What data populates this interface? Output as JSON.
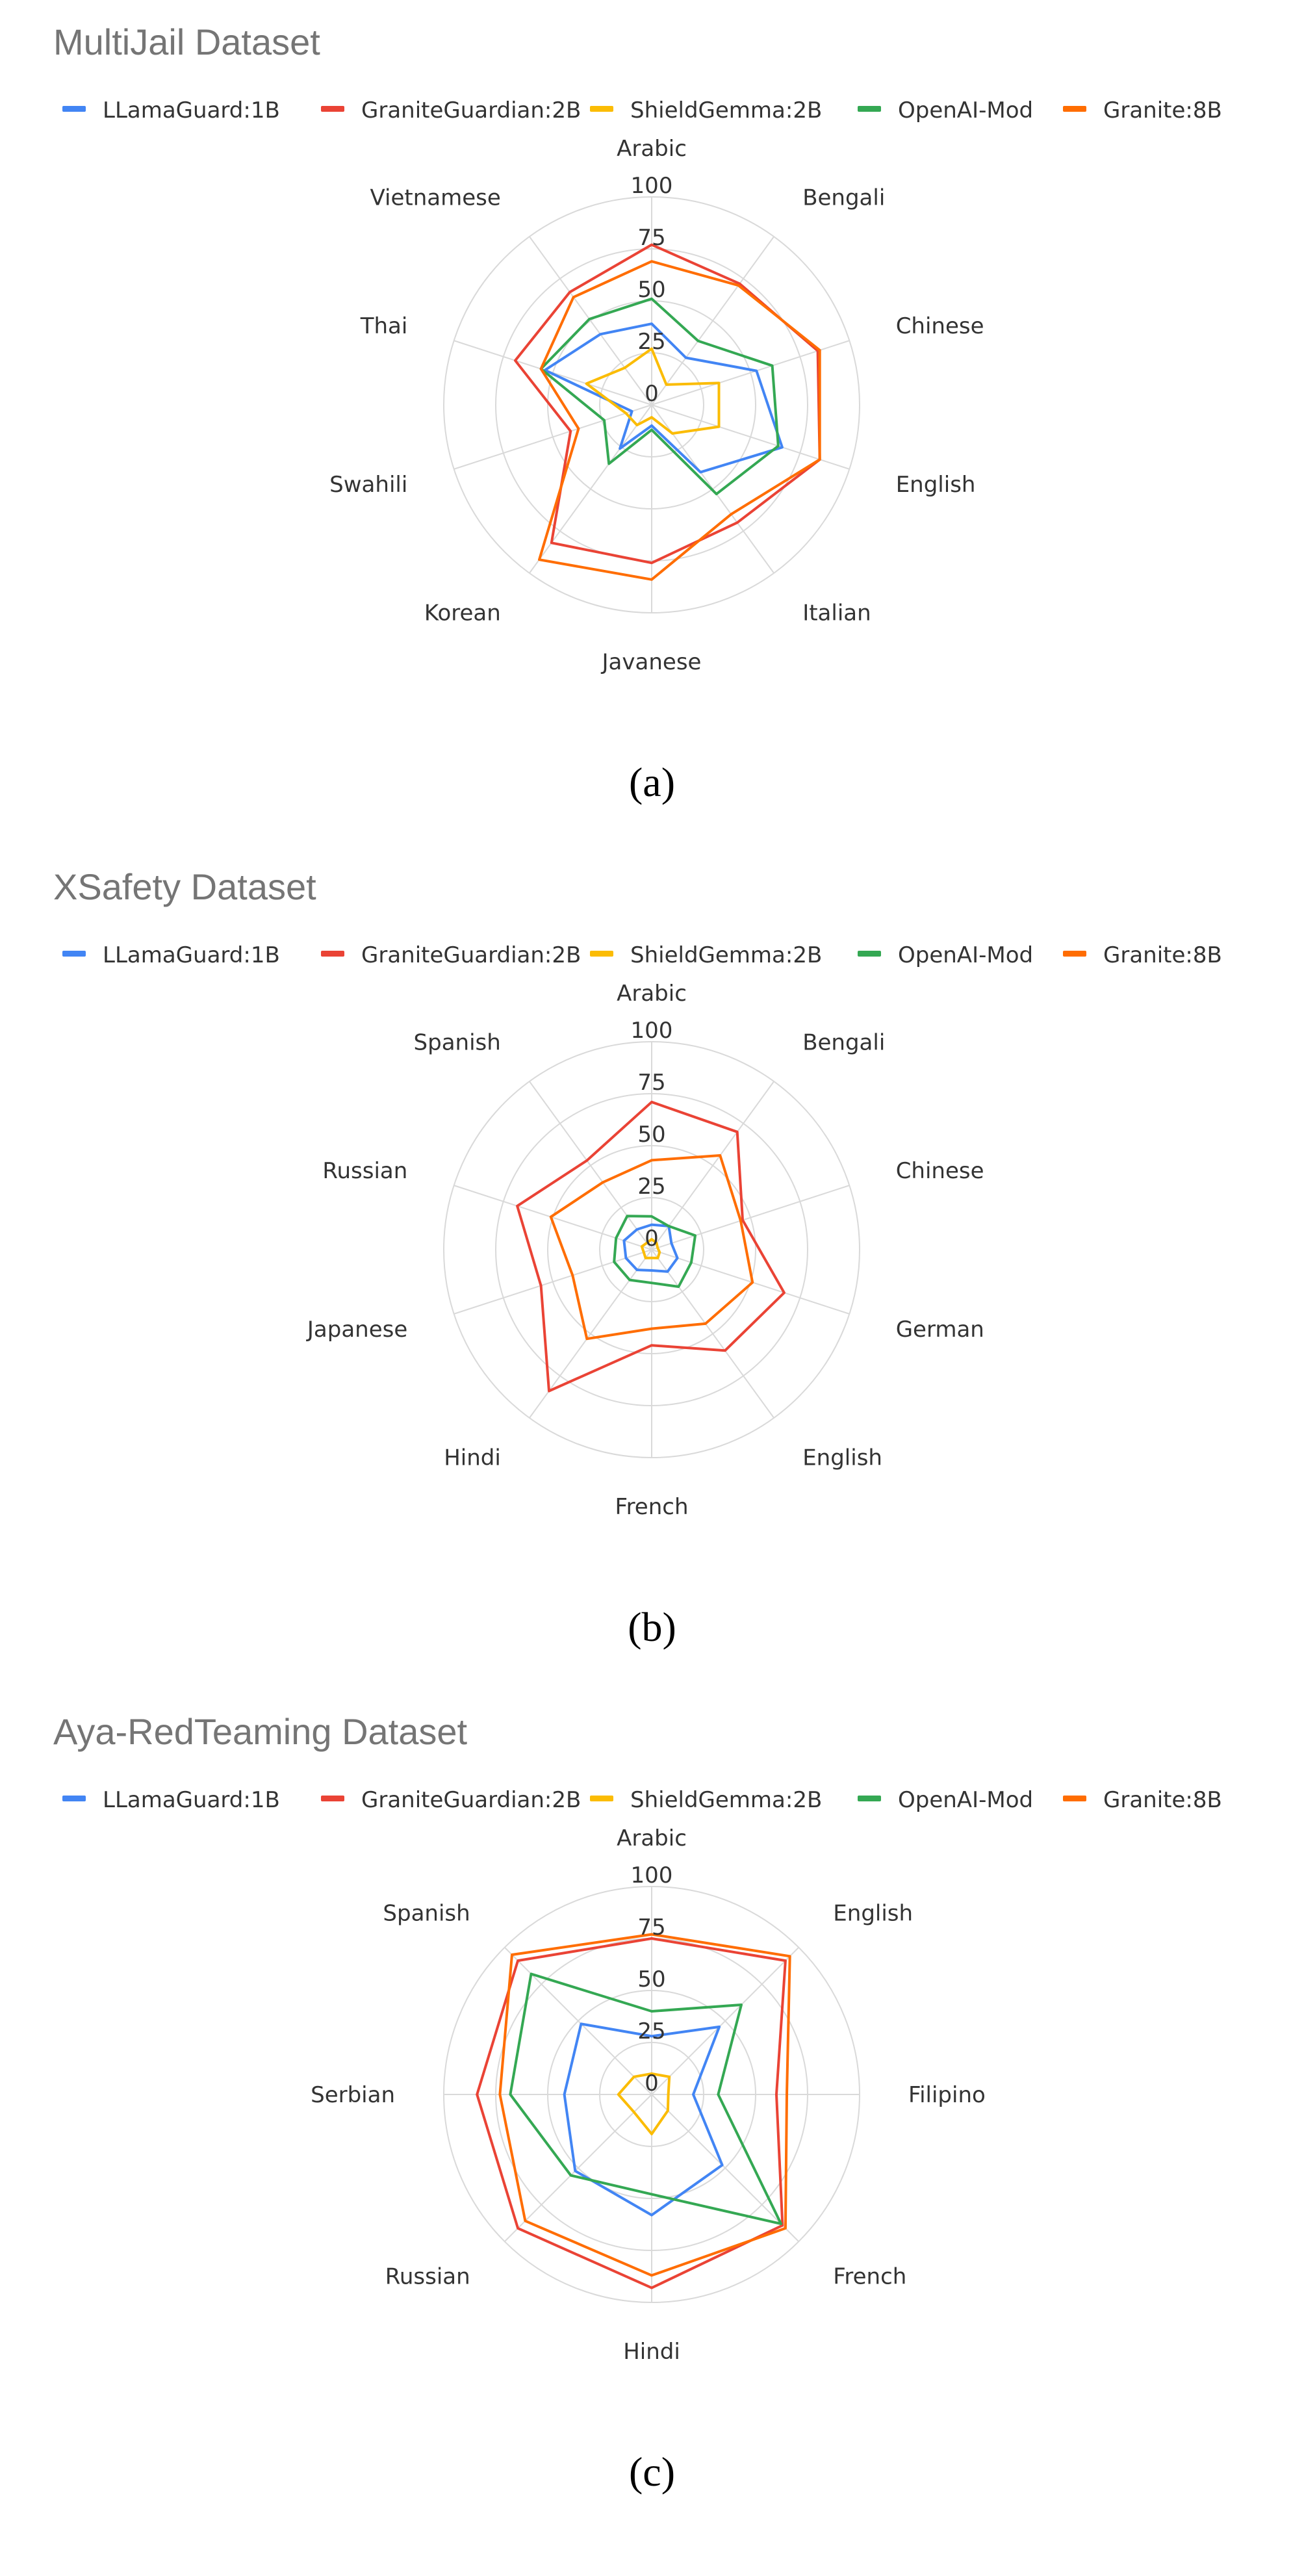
{
  "chart_data": [
    {
      "type": "radar",
      "title": "MultiJail Dataset",
      "caption": "(a)",
      "rmax": 100,
      "ticks": [
        "0",
        "25",
        "50",
        "75",
        "100"
      ],
      "categories": [
        "Arabic",
        "Bengali",
        "Chinese",
        "English",
        "Italian",
        "Javanese",
        "Korean",
        "Swahili",
        "Thai",
        "Vietnamese"
      ],
      "series": [
        {
          "name": "LLamaGuard:1B",
          "color": "#4285F4",
          "values": [
            39,
            28,
            53,
            66,
            40,
            10,
            26,
            10,
            54,
            42
          ]
        },
        {
          "name": "GraniteGuardian:2B",
          "color": "#EA4335",
          "values": [
            77,
            72,
            84,
            85,
            70,
            76,
            82,
            41,
            69,
            67
          ]
        },
        {
          "name": "ShieldGemma:2B",
          "color": "#FBBC04",
          "values": [
            27,
            12,
            34,
            34,
            17,
            6,
            12,
            13,
            33,
            22
          ]
        },
        {
          "name": "OpenAI-Mod",
          "color": "#34A853",
          "values": [
            51,
            38,
            61,
            64,
            53,
            12,
            35,
            24,
            56,
            51
          ]
        },
        {
          "name": "Granite:8B",
          "color": "#FF6D01",
          "values": [
            69,
            71,
            85,
            85,
            65,
            84,
            92,
            37,
            56,
            64
          ]
        }
      ]
    },
    {
      "type": "radar",
      "title": "XSafety Dataset",
      "caption": "(b)",
      "rmax": 100,
      "ticks": [
        "0",
        "25",
        "50",
        "75",
        "100"
      ],
      "categories": [
        "Arabic",
        "Bengali",
        "Chinese",
        "German",
        "English",
        "French",
        "Hindi",
        "Japanese",
        "Russian",
        "Spanish"
      ],
      "series": [
        {
          "name": "LLamaGuard:1B",
          "color": "#4285F4",
          "values": [
            12,
            14,
            10,
            13,
            13,
            10,
            12,
            13,
            14,
            12
          ]
        },
        {
          "name": "GraniteGuardian:2B",
          "color": "#EA4335",
          "values": [
            71,
            70,
            46,
            67,
            60,
            46,
            84,
            56,
            68,
            53
          ]
        },
        {
          "name": "ShieldGemma:2B",
          "color": "#FBBC04",
          "values": [
            5,
            4,
            3,
            4,
            5,
            4,
            5,
            4,
            5,
            4
          ]
        },
        {
          "name": "OpenAI-Mod",
          "color": "#34A853",
          "values": [
            16,
            14,
            22,
            20,
            22,
            16,
            18,
            19,
            18,
            20
          ]
        },
        {
          "name": "Granite:8B",
          "color": "#FF6D01",
          "values": [
            43,
            56,
            45,
            51,
            44,
            38,
            53,
            40,
            51,
            40
          ]
        }
      ]
    },
    {
      "type": "radar",
      "title": "Aya-RedTeaming Dataset",
      "caption": "(c)",
      "rmax": 100,
      "ticks": [
        "0",
        "25",
        "50",
        "75",
        "100"
      ],
      "categories": [
        "Arabic",
        "English",
        "Filipino",
        "French",
        "Hindi",
        "Russian",
        "Serbian",
        "Spanish"
      ],
      "series": [
        {
          "name": "LLamaGuard:1B",
          "color": "#4285F4",
          "values": [
            28,
            46,
            20,
            48,
            58,
            52,
            42,
            48
          ]
        },
        {
          "name": "GraniteGuardian:2B",
          "color": "#EA4335",
          "values": [
            75,
            91,
            60,
            89,
            93,
            91,
            84,
            91
          ]
        },
        {
          "name": "ShieldGemma:2B",
          "color": "#FBBC04",
          "values": [
            10,
            12,
            8,
            11,
            19,
            12,
            16,
            12
          ]
        },
        {
          "name": "OpenAI-Mod",
          "color": "#34A853",
          "values": [
            40,
            61,
            32,
            88,
            48,
            55,
            68,
            82
          ]
        },
        {
          "name": "Granite:8B",
          "color": "#FF6D01",
          "values": [
            77,
            94,
            65,
            91,
            87,
            86,
            73,
            95
          ]
        }
      ]
    }
  ]
}
